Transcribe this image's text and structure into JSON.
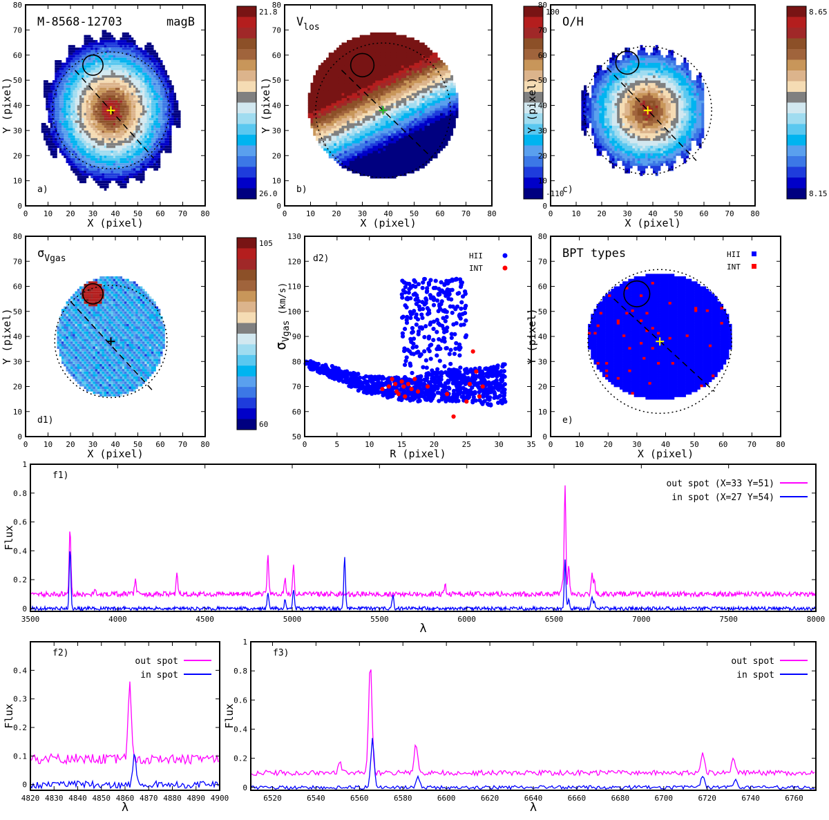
{
  "chart_data": [
    {
      "id": "a",
      "type": "heatmap",
      "panel_label": "a)",
      "title": "M-8568-12703",
      "subtitle": "magB",
      "xlabel": "X   (pixel)",
      "ylabel": "Y   (pixel)",
      "xlim": [
        0,
        80
      ],
      "ylim": [
        0,
        80
      ],
      "xticks": [
        0,
        10,
        20,
        30,
        40,
        50,
        60,
        70,
        80
      ],
      "yticks": [
        0,
        10,
        20,
        30,
        40,
        50,
        60,
        70,
        80
      ],
      "colorbar": {
        "max_label": "21.8",
        "min_label": "26.0",
        "max": 21.8,
        "min": 26.0
      },
      "center": [
        38,
        38
      ],
      "spot": {
        "x": 30,
        "y": 56,
        "r": 4.5
      },
      "ellipse": {
        "cx": 38,
        "cy": 38,
        "r": 26
      },
      "dashed_line": [
        [
          22,
          54
        ],
        [
          57,
          19
        ]
      ],
      "marker_color": "#ffff00"
    },
    {
      "id": "b",
      "type": "heatmap",
      "panel_label": "b)",
      "title": "V",
      "title_sub": "los",
      "xlabel": "X   (pixel)",
      "ylabel": "Y   (pixel)",
      "xlim": [
        0,
        80
      ],
      "ylim": [
        0,
        80
      ],
      "xticks": [
        0,
        10,
        20,
        30,
        40,
        50,
        60,
        70,
        80
      ],
      "yticks": [
        0,
        10,
        20,
        30,
        40,
        50,
        60,
        70,
        80
      ],
      "colorbar": {
        "max_label": "100",
        "min_label": "-110",
        "max": 100,
        "min": -110
      },
      "center": [
        38,
        38
      ],
      "spot": {
        "x": 30,
        "y": 56,
        "r": 4.5
      },
      "ellipse": {
        "cx": 38,
        "cy": 38,
        "r": 26
      },
      "dashed_line": [
        [
          22,
          54
        ],
        [
          57,
          19
        ]
      ],
      "marker_color": "#22bb22"
    },
    {
      "id": "c",
      "type": "heatmap",
      "panel_label": "c)",
      "title": "O/H",
      "xlabel": "X   (pixel)",
      "ylabel": "Y   (pixel)",
      "xlim": [
        0,
        80
      ],
      "ylim": [
        0,
        80
      ],
      "xticks": [
        0,
        10,
        20,
        30,
        40,
        50,
        60,
        70,
        80
      ],
      "yticks": [
        0,
        10,
        20,
        30,
        40,
        50,
        60,
        70,
        80
      ],
      "colorbar": {
        "max_label": "8.65",
        "min_label": "8.15",
        "max": 8.65,
        "min": 8.15
      },
      "center": [
        38,
        38
      ],
      "spot": {
        "x": 30,
        "y": 57,
        "r": 4.5
      },
      "ellipse": {
        "cx": 38,
        "cy": 38,
        "r": 25
      },
      "dashed_line": [
        [
          22,
          55
        ],
        [
          57,
          18
        ]
      ],
      "marker_color": "#ffff00"
    },
    {
      "id": "d1",
      "type": "heatmap",
      "panel_label": "d1)",
      "title": "σ",
      "title_sub": "Vgas",
      "xlabel": "X   (pixel)",
      "ylabel": "Y   (pixel)",
      "xlim": [
        0,
        80
      ],
      "ylim": [
        0,
        80
      ],
      "xticks": [
        0,
        10,
        20,
        30,
        40,
        50,
        60,
        70,
        80
      ],
      "yticks": [
        0,
        10,
        20,
        30,
        40,
        50,
        60,
        70,
        80
      ],
      "colorbar": {
        "max_label": "105",
        "min_label": "60",
        "max": 105,
        "min": 60
      },
      "center": [
        38,
        38
      ],
      "spot": {
        "x": 30,
        "y": 57,
        "r": 4.5
      },
      "ellipse": {
        "cx": 38,
        "cy": 38,
        "r": 25
      },
      "dashed_line": [
        [
          20,
          54
        ],
        [
          57,
          18
        ]
      ],
      "marker_color": "#000000"
    },
    {
      "id": "d2",
      "type": "scatter",
      "panel_label": "d2)",
      "xlabel": "R    (pixel)",
      "ylabel": "σ",
      "ylabel_sub": "Vgas",
      "ylabel_unit": "(km/s)",
      "xlim": [
        0,
        35
      ],
      "ylim": [
        50,
        130
      ],
      "xticks": [
        0,
        5,
        10,
        15,
        20,
        25,
        30,
        35
      ],
      "yticks": [
        50,
        60,
        70,
        80,
        90,
        100,
        110,
        120,
        130
      ],
      "legend": [
        {
          "name": "HII",
          "color": "#0000ff"
        },
        {
          "name": "INT",
          "color": "#ff0000"
        }
      ],
      "series": [
        {
          "name": "HII",
          "color": "#0000ff",
          "trend": [
            [
              0,
              79
            ],
            [
              3,
              77
            ],
            [
              6,
              74
            ],
            [
              9,
              71
            ],
            [
              12,
              70
            ],
            [
              16,
              69
            ],
            [
              20,
              70
            ],
            [
              25,
              71
            ],
            [
              29,
              70
            ],
            [
              31,
              71
            ]
          ],
          "branch": {
            "x": [
              15,
              25
            ],
            "y": [
              72,
              113
            ]
          }
        },
        {
          "name": "INT",
          "color": "#ff0000",
          "points": [
            [
              12,
              69
            ],
            [
              13,
              70
            ],
            [
              13.5,
              73
            ],
            [
              14,
              71
            ],
            [
              14.2,
              68
            ],
            [
              14.5,
              67
            ],
            [
              15,
              72
            ],
            [
              15.3,
              70
            ],
            [
              15.5,
              66
            ],
            [
              16,
              71
            ],
            [
              16.5,
              69
            ],
            [
              17,
              73
            ],
            [
              17.5,
              68
            ],
            [
              19,
              70
            ],
            [
              22,
              67
            ],
            [
              23,
              58
            ],
            [
              25,
              64
            ],
            [
              25.5,
              71
            ],
            [
              26,
              84
            ],
            [
              26.5,
              76
            ],
            [
              27,
              66
            ],
            [
              27.5,
              70
            ]
          ]
        }
      ]
    },
    {
      "id": "e",
      "type": "heatmap",
      "panel_label": "e)",
      "title": "BPT types",
      "xlabel": "X   (pixel)",
      "ylabel": "Y   (pixel)",
      "xlim": [
        0,
        80
      ],
      "ylim": [
        0,
        80
      ],
      "xticks": [
        0,
        10,
        20,
        30,
        40,
        50,
        60,
        70,
        80
      ],
      "yticks": [
        0,
        10,
        20,
        30,
        40,
        50,
        60,
        70,
        80
      ],
      "legend": [
        {
          "name": "HII",
          "color": "#0000ff"
        },
        {
          "name": "INT",
          "color": "#ff0000"
        }
      ],
      "center": [
        38,
        38
      ],
      "spot": {
        "x": 30,
        "y": 57,
        "r": 4.5
      },
      "ellipse": {
        "cx": 38,
        "cy": 38,
        "r": 25
      },
      "dashed_line": [
        [
          22,
          55
        ],
        [
          57,
          18
        ]
      ],
      "marker_color": "#ffff00"
    },
    {
      "id": "f1",
      "type": "line",
      "panel_label": "f1)",
      "xlabel": "λ",
      "ylabel": "Flux",
      "xlim": [
        3500,
        8000
      ],
      "ylim": [
        -0.02,
        1.0
      ],
      "xticks": [
        3500,
        4000,
        4500,
        5000,
        5500,
        6000,
        6500,
        7000,
        7500,
        8000
      ],
      "yticks": [
        0,
        0.2,
        0.4,
        0.6,
        0.8,
        1
      ],
      "series": [
        {
          "name": "out spot (X=33 Y=51)",
          "color": "#ff00ff",
          "continuum": 0.1,
          "lines": [
            [
              3727,
              0.56
            ],
            [
              3869,
              0.13
            ],
            [
              4101,
              0.2
            ],
            [
              4340,
              0.25
            ],
            [
              4861,
              0.36
            ],
            [
              4959,
              0.22
            ],
            [
              5007,
              0.3
            ],
            [
              5876,
              0.17
            ],
            [
              6548,
              0.17
            ],
            [
              6563,
              0.85
            ],
            [
              6584,
              0.3
            ],
            [
              6717,
              0.23
            ],
            [
              6731,
              0.2
            ]
          ]
        },
        {
          "name": "in spot (X=27 Y=54)",
          "color": "#0000ff",
          "continuum": 0.0,
          "lines": [
            [
              3727,
              0.42
            ],
            [
              4861,
              0.11
            ],
            [
              4959,
              0.06
            ],
            [
              5007,
              0.14
            ],
            [
              5300,
              0.37
            ],
            [
              5577,
              0.1
            ],
            [
              6563,
              0.33
            ],
            [
              6584,
              0.07
            ],
            [
              6717,
              0.08
            ],
            [
              6731,
              0.05
            ]
          ]
        }
      ]
    },
    {
      "id": "f2",
      "type": "line",
      "panel_label": "f2)",
      "xlabel": "λ",
      "ylabel": "Flux",
      "xlim": [
        4820,
        4900
      ],
      "ylim": [
        -0.02,
        0.5
      ],
      "xticks": [
        4820,
        4830,
        4840,
        4850,
        4860,
        4870,
        4880,
        4890,
        4900
      ],
      "yticks": [
        0,
        0.1,
        0.2,
        0.3,
        0.4
      ],
      "series": [
        {
          "name": "out spot",
          "color": "#ff00ff",
          "continuum": 0.09,
          "lines": [
            [
              4862,
              0.36
            ]
          ]
        },
        {
          "name": "in spot",
          "color": "#0000ff",
          "continuum": 0.0,
          "lines": [
            [
              4864,
              0.11
            ]
          ]
        }
      ]
    },
    {
      "id": "f3",
      "type": "line",
      "panel_label": "f3)",
      "xlabel": "λ",
      "ylabel": "Flux",
      "xlim": [
        6510,
        6770
      ],
      "ylim": [
        -0.02,
        1.0
      ],
      "xticks": [
        6520,
        6540,
        6560,
        6580,
        6600,
        6620,
        6640,
        6660,
        6680,
        6700,
        6720,
        6740,
        6760
      ],
      "yticks": [
        0,
        0.2,
        0.4,
        0.6,
        0.8,
        1
      ],
      "series": [
        {
          "name": "out spot",
          "color": "#ff00ff",
          "continuum": 0.1,
          "lines": [
            [
              6551,
              0.17
            ],
            [
              6565,
              0.85
            ],
            [
              6586,
              0.3
            ],
            [
              6718,
              0.23
            ],
            [
              6732,
              0.2
            ]
          ]
        },
        {
          "name": "in spot",
          "color": "#0000ff",
          "continuum": 0.0,
          "lines": [
            [
              6566,
              0.33
            ],
            [
              6587,
              0.07
            ],
            [
              6718,
              0.08
            ],
            [
              6733,
              0.05
            ]
          ]
        }
      ]
    }
  ],
  "colormap": [
    "#000080",
    "#0000c8",
    "#1e3cdc",
    "#3c78e6",
    "#5aa0ee",
    "#00b4f0",
    "#5ac8f0",
    "#a0dcf0",
    "#d2e8f0",
    "#808080",
    "#f5dcb4",
    "#dcb48c",
    "#c8965a",
    "#a0643c",
    "#8c5028",
    "#a02828",
    "#b41e1e",
    "#781414"
  ]
}
